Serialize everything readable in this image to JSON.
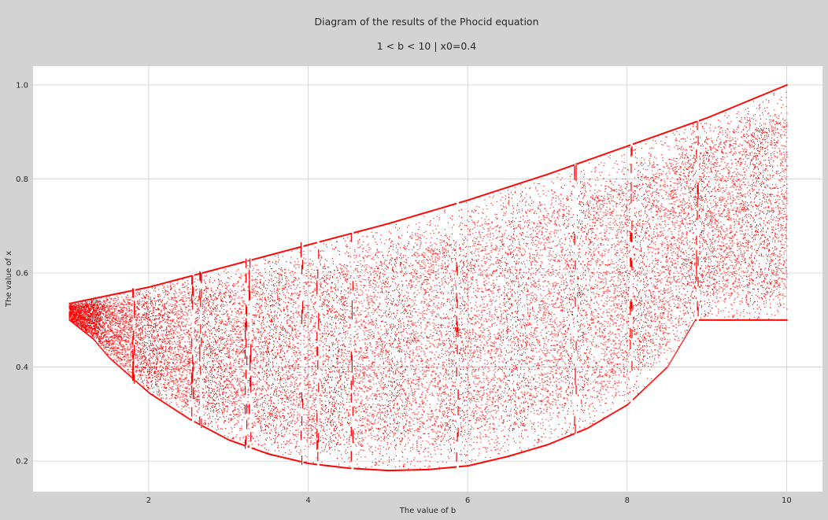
{
  "chart_data": {
    "type": "scatter",
    "title": "Diagram of the results of the Phocid equation",
    "subtitle": "1 < b < 10  |  x0=0.4",
    "xlabel": "The value of b",
    "ylabel": "The value of x",
    "xlim": [
      0.55,
      10.45
    ],
    "ylim": [
      0.135,
      1.04
    ],
    "xticks": [
      2,
      4,
      6,
      8,
      10
    ],
    "yticks": [
      0.2,
      0.4,
      0.6,
      0.8,
      1.0
    ],
    "xtick_labels": [
      "2",
      "4",
      "6",
      "8",
      "10"
    ],
    "ytick_labels": [
      "0.2",
      "0.4",
      "0.6",
      "0.8",
      "1.0"
    ],
    "grid": true,
    "point_color": "#ff0000",
    "plot_background": "#ffffff",
    "figure_background": "#d3d3d3",
    "grid_color": "#cccccc",
    "series": [
      {
        "b_min": 1.0,
        "b_max": 10.0,
        "upper_envelope": [
          [
            1.0,
            0.535
          ],
          [
            2.0,
            0.57
          ],
          [
            3.0,
            0.615
          ],
          [
            4.0,
            0.66
          ],
          [
            5.0,
            0.705
          ],
          [
            6.0,
            0.755
          ],
          [
            7.0,
            0.81
          ],
          [
            8.0,
            0.87
          ],
          [
            9.0,
            0.93
          ],
          [
            10.0,
            1.0
          ]
        ],
        "lower_envelope": [
          [
            1.0,
            0.5
          ],
          [
            1.3,
            0.46
          ],
          [
            1.5,
            0.42
          ],
          [
            2.0,
            0.345
          ],
          [
            2.5,
            0.29
          ],
          [
            3.0,
            0.245
          ],
          [
            3.5,
            0.215
          ],
          [
            4.0,
            0.195
          ],
          [
            4.5,
            0.185
          ],
          [
            5.0,
            0.18
          ],
          [
            5.5,
            0.182
          ],
          [
            6.0,
            0.19
          ],
          [
            6.5,
            0.21
          ],
          [
            7.0,
            0.235
          ],
          [
            7.5,
            0.27
          ],
          [
            8.0,
            0.32
          ],
          [
            8.5,
            0.4
          ],
          [
            8.85,
            0.5
          ],
          [
            10.0,
            0.5
          ]
        ],
        "periodic_windows": [
          1.81,
          2.55,
          2.65,
          3.22,
          3.27,
          3.92,
          4.12,
          4.55,
          5.87,
          7.35,
          8.05,
          8.88
        ]
      }
    ]
  }
}
